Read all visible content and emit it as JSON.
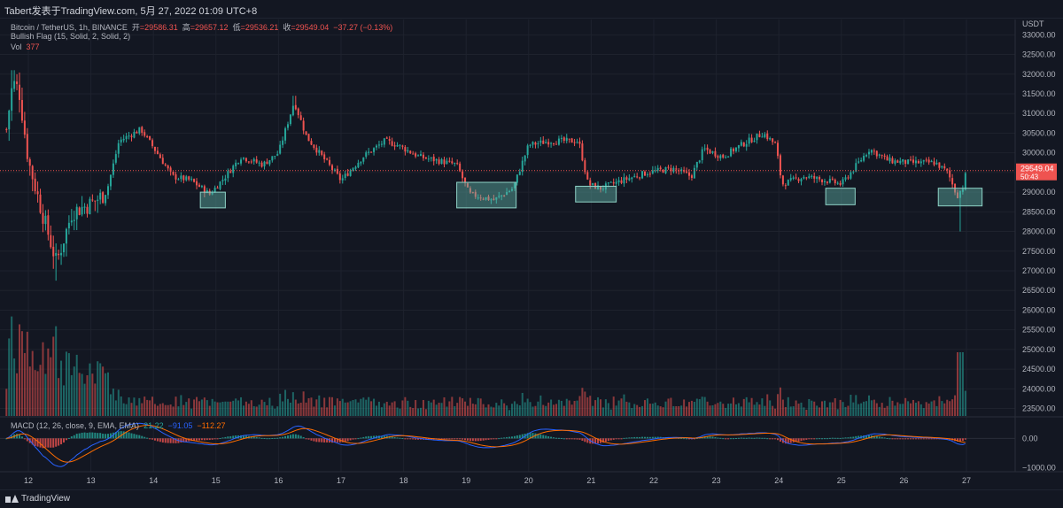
{
  "header": {
    "text": "Tabert发表于TradingView.com,  5月 27, 2022 01:09 UTC+8"
  },
  "legend": {
    "symbol": "Bitcoin / TetherUS, 1h, BINANCE",
    "open_label": "开",
    "open": "=29586.31",
    "high_label": "高",
    "high": "=29657.12",
    "low_label": "低",
    "low": "=29536.21",
    "close_label": "收",
    "close": "=29549.04",
    "change": "−37.27 (−0.13%)",
    "indicator": "Bullish Flag (15, Solid, 2, Solid, 2)",
    "vol_label": "Vol",
    "vol_value": "377",
    "macd_label": "MACD (12, 26, close, 9, EMA, EMA)",
    "macd_v1": "21.22",
    "macd_v2": "−91.05",
    "macd_v3": "−112.27"
  },
  "price_tag": {
    "price": "29549.04",
    "countdown": "50:43"
  },
  "footer": {
    "brand": "TradingView"
  },
  "colors": {
    "background": "#131722",
    "up": "#26a69a",
    "down": "#ef5350",
    "macd_line": "#2962ff",
    "signal_line": "#ff6d00",
    "flag_box": "#5fb3a8"
  },
  "chart_data": [
    {
      "type": "candlestick",
      "title": "Bitcoin / TetherUS, 1h, BINANCE",
      "quote_currency": "USDT",
      "x_tick_labels": [
        "12",
        "13",
        "14",
        "15",
        "16",
        "17",
        "18",
        "19",
        "20",
        "21",
        "22",
        "23",
        "24",
        "25",
        "26",
        "27"
      ],
      "y_tick_labels": [
        "33000.00",
        "32500.00",
        "32000.00",
        "31500.00",
        "31000.00",
        "30500.00",
        "30000.00",
        "29500.00",
        "29000.00",
        "28500.00",
        "28000.00",
        "27500.00",
        "27000.00",
        "26500.00",
        "26000.00",
        "25500.00",
        "25000.00",
        "24500.00",
        "24000.00",
        "23500.00"
      ],
      "ylim": [
        23400,
        33300
      ],
      "xlim_days": [
        11.65,
        27.9
      ],
      "last_price": 29549.04,
      "daily_path": [
        {
          "day": 11.65,
          "price": 30600
        },
        {
          "day": 11.75,
          "price": 31800
        },
        {
          "day": 11.85,
          "price": 31600
        },
        {
          "day": 12.0,
          "price": 29800
        },
        {
          "day": 12.2,
          "price": 28600
        },
        {
          "day": 12.45,
          "price": 27200
        },
        {
          "day": 12.7,
          "price": 28500
        },
        {
          "day": 13.0,
          "price": 28700
        },
        {
          "day": 13.25,
          "price": 29000
        },
        {
          "day": 13.45,
          "price": 30300
        },
        {
          "day": 13.8,
          "price": 30600
        },
        {
          "day": 14.1,
          "price": 29900
        },
        {
          "day": 14.3,
          "price": 29400
        },
        {
          "day": 14.6,
          "price": 29300
        },
        {
          "day": 14.9,
          "price": 28950
        },
        {
          "day": 15.15,
          "price": 29400
        },
        {
          "day": 15.4,
          "price": 29900
        },
        {
          "day": 15.75,
          "price": 29700
        },
        {
          "day": 16.0,
          "price": 30000
        },
        {
          "day": 16.25,
          "price": 31300
        },
        {
          "day": 16.45,
          "price": 30400
        },
        {
          "day": 16.7,
          "price": 29900
        },
        {
          "day": 17.0,
          "price": 29300
        },
        {
          "day": 17.35,
          "price": 29900
        },
        {
          "day": 17.7,
          "price": 30300
        },
        {
          "day": 17.9,
          "price": 30200
        },
        {
          "day": 18.25,
          "price": 29900
        },
        {
          "day": 18.55,
          "price": 29800
        },
        {
          "day": 18.85,
          "price": 29700
        },
        {
          "day": 19.05,
          "price": 28950
        },
        {
          "day": 19.45,
          "price": 28800
        },
        {
          "day": 19.75,
          "price": 29100
        },
        {
          "day": 20.0,
          "price": 30200
        },
        {
          "day": 20.35,
          "price": 30300
        },
        {
          "day": 20.8,
          "price": 30300
        },
        {
          "day": 20.95,
          "price": 29200
        },
        {
          "day": 21.15,
          "price": 29100
        },
        {
          "day": 21.5,
          "price": 29300
        },
        {
          "day": 21.9,
          "price": 29500
        },
        {
          "day": 22.3,
          "price": 29600
        },
        {
          "day": 22.6,
          "price": 29400
        },
        {
          "day": 22.8,
          "price": 30100
        },
        {
          "day": 23.1,
          "price": 29900
        },
        {
          "day": 23.4,
          "price": 30200
        },
        {
          "day": 23.75,
          "price": 30500
        },
        {
          "day": 23.95,
          "price": 30200
        },
        {
          "day": 24.05,
          "price": 29200
        },
        {
          "day": 24.4,
          "price": 29400
        },
        {
          "day": 24.75,
          "price": 29300
        },
        {
          "day": 25.0,
          "price": 29200
        },
        {
          "day": 25.15,
          "price": 29500
        },
        {
          "day": 25.45,
          "price": 30100
        },
        {
          "day": 25.75,
          "price": 29800
        },
        {
          "day": 26.1,
          "price": 29750
        },
        {
          "day": 26.5,
          "price": 29750
        },
        {
          "day": 26.7,
          "price": 29500
        },
        {
          "day": 26.85,
          "price": 28900
        },
        {
          "day": 26.95,
          "price": 29150
        },
        {
          "day": 27.0,
          "price": 29550
        }
      ],
      "flag_boxes": [
        {
          "day_start": 14.75,
          "day_end": 15.15,
          "price_high": 29000,
          "price_low": 28600
        },
        {
          "day_start": 18.85,
          "day_end": 19.8,
          "price_high": 29250,
          "price_low": 28600
        },
        {
          "day_start": 20.75,
          "day_end": 21.4,
          "price_high": 29150,
          "price_low": 28750
        },
        {
          "day_start": 24.75,
          "day_end": 25.22,
          "price_high": 29100,
          "price_low": 28680
        },
        {
          "day_start": 26.55,
          "day_end": 27.25,
          "price_high": 29100,
          "price_low": 28650
        }
      ]
    },
    {
      "type": "bar",
      "title": "Vol",
      "last_value": 377
    },
    {
      "type": "line",
      "title": "MACD (12, 26, close, 9, EMA, EMA)",
      "y_tick_labels": [
        "0.00",
        "−1000.00"
      ],
      "ylim": [
        -1100,
        700
      ],
      "series": [
        {
          "values": [
            21.22
          ]
        },
        {
          "values": [
            -91.05
          ]
        },
        {
          "values": [
            -112.27
          ]
        }
      ]
    }
  ]
}
